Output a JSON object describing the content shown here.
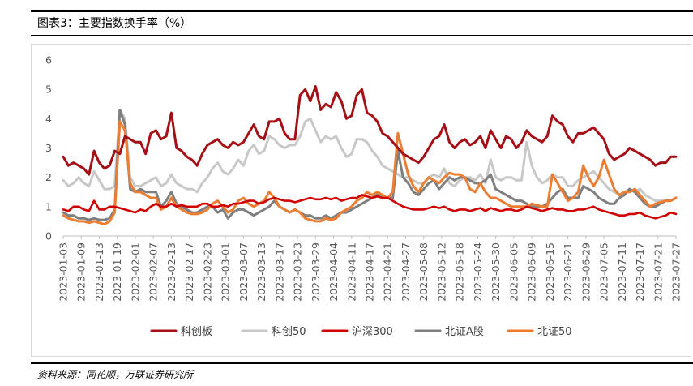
{
  "header": {
    "title": "图表3：主要指数换手率（%）"
  },
  "footer": {
    "source": "资料来源：同花顺，万联证券研究所"
  },
  "chart_data": {
    "type": "line",
    "ylim": [
      0,
      6
    ],
    "yticks": [
      0,
      1,
      2,
      3,
      4,
      5,
      6
    ],
    "xticks": [
      "2023-01-03",
      "2023-01-09",
      "2023-01-13",
      "2023-01-19",
      "2023-02-01",
      "2023-02-07",
      "2023-02-13",
      "2023-02-17",
      "2023-02-23",
      "2023-03-01",
      "2023-03-07",
      "2023-03-13",
      "2023-03-17",
      "2023-03-23",
      "2023-03-29",
      "2023-04-04",
      "2023-04-11",
      "2023-04-17",
      "2023-04-21",
      "2023-04-27",
      "2023-05-08",
      "2023-05-12",
      "2023-05-18",
      "2023-05-24",
      "2023-05-30",
      "2023-06-05",
      "2023-06-09",
      "2023-06-15",
      "2023-06-21",
      "2023-06-29",
      "2023-07-05",
      "2023-07-11",
      "2023-07-17",
      "2023-07-21",
      "2023-07-27"
    ],
    "points_per_tick": 4,
    "grid": false,
    "legend_position": "bottom",
    "series": [
      {
        "name": "科创板",
        "color": "#a50f15",
        "values": [
          2.7,
          2.4,
          2.5,
          2.4,
          2.3,
          2.1,
          2.9,
          2.5,
          2.3,
          2.4,
          2.9,
          2.8,
          3.4,
          3.3,
          3.2,
          3.2,
          2.8,
          3.5,
          3.6,
          3.3,
          3.4,
          4.2,
          3.0,
          2.9,
          2.7,
          2.6,
          2.4,
          2.8,
          3.1,
          3.2,
          3.3,
          3.1,
          3.0,
          3.2,
          3.1,
          3.2,
          3.5,
          3.8,
          3.4,
          3.3,
          3.9,
          3.9,
          4.0,
          3.5,
          3.3,
          3.3,
          4.8,
          5.0,
          4.6,
          5.1,
          4.3,
          4.5,
          4.4,
          4.9,
          4.6,
          4.0,
          4.1,
          4.8,
          5.0,
          4.2,
          4.1,
          3.9,
          3.5,
          3.4,
          3.2,
          3.0,
          2.8,
          2.7,
          2.6,
          2.5,
          2.7,
          3.0,
          3.3,
          3.4,
          3.8,
          3.2,
          3.0,
          3.2,
          3.3,
          3.1,
          3.2,
          3.4,
          3.0,
          3.6,
          3.3,
          3.0,
          3.4,
          3.3,
          3.0,
          3.2,
          3.6,
          3.4,
          3.3,
          3.2,
          3.4,
          4.1,
          3.9,
          3.8,
          3.4,
          3.2,
          3.5,
          3.5,
          3.6,
          3.7,
          3.5,
          3.3,
          2.8,
          2.6,
          2.7,
          2.8,
          3.0,
          2.9,
          2.8,
          2.7,
          2.6,
          2.4,
          2.5,
          2.5,
          2.7,
          2.7
        ]
      },
      {
        "name": "科创50",
        "color": "#c8c8c8",
        "values": [
          1.9,
          1.7,
          1.8,
          2.0,
          1.8,
          1.7,
          2.2,
          1.9,
          1.6,
          1.6,
          1.7,
          4.3,
          4.0,
          2.0,
          1.7,
          1.7,
          1.8,
          1.9,
          2.0,
          1.7,
          1.8,
          2.1,
          1.8,
          1.7,
          1.6,
          1.6,
          1.5,
          1.8,
          2.0,
          2.3,
          2.5,
          2.2,
          2.1,
          2.3,
          2.6,
          2.4,
          2.9,
          3.1,
          2.8,
          2.9,
          3.4,
          3.3,
          3.1,
          3.0,
          3.1,
          3.1,
          3.4,
          3.9,
          4.0,
          3.6,
          3.2,
          3.4,
          3.3,
          3.4,
          3.0,
          2.7,
          2.8,
          3.3,
          3.3,
          3.2,
          2.9,
          2.7,
          2.4,
          2.3,
          2.2,
          2.1,
          2.0,
          2.0,
          1.9,
          1.8,
          1.8,
          2.0,
          2.1,
          2.0,
          2.3,
          1.8,
          1.7,
          1.9,
          2.0,
          2.0,
          1.9,
          2.1,
          1.8,
          2.6,
          2.0,
          1.9,
          2.0,
          2.0,
          1.9,
          1.9,
          3.2,
          2.4,
          2.0,
          1.8,
          1.9,
          2.1,
          2.0,
          2.0,
          1.7,
          1.7,
          1.9,
          2.0,
          2.1,
          2.2,
          2.0,
          1.8,
          1.6,
          1.5,
          1.4,
          1.5,
          1.6,
          1.5,
          1.6,
          1.4,
          1.3,
          1.2,
          1.2,
          1.2,
          1.2,
          1.3
        ]
      },
      {
        "name": "沪深300",
        "color": "#d00000",
        "values": [
          0.9,
          0.85,
          1.0,
          1.0,
          0.9,
          0.85,
          1.2,
          0.9,
          0.9,
          1.0,
          1.0,
          0.95,
          0.9,
          0.85,
          0.8,
          0.9,
          0.85,
          1.0,
          1.1,
          1.0,
          1.0,
          1.1,
          1.0,
          1.05,
          1.0,
          1.0,
          1.0,
          1.1,
          1.1,
          1.0,
          1.0,
          1.05,
          1.0,
          1.1,
          1.1,
          1.15,
          1.2,
          1.2,
          1.1,
          1.15,
          1.25,
          1.3,
          1.25,
          1.2,
          1.2,
          1.15,
          1.2,
          1.25,
          1.3,
          1.25,
          1.25,
          1.3,
          1.25,
          1.3,
          1.2,
          1.25,
          1.3,
          1.3,
          1.4,
          1.35,
          1.3,
          1.35,
          1.3,
          1.3,
          1.2,
          1.1,
          1.0,
          0.95,
          0.9,
          0.9,
          0.9,
          0.95,
          1.0,
          0.95,
          1.0,
          0.9,
          0.85,
          0.9,
          0.9,
          0.85,
          0.9,
          0.95,
          0.85,
          0.95,
          0.9,
          0.85,
          0.9,
          0.9,
          0.85,
          0.9,
          1.0,
          0.95,
          0.9,
          0.85,
          0.9,
          0.95,
          0.9,
          0.9,
          0.85,
          0.85,
          0.9,
          0.9,
          0.95,
          1.0,
          0.9,
          0.85,
          0.8,
          0.75,
          0.7,
          0.7,
          0.75,
          0.75,
          0.8,
          0.7,
          0.65,
          0.6,
          0.65,
          0.7,
          0.8,
          0.75
        ]
      },
      {
        "name": "北证A股",
        "color": "#7f7f7f",
        "values": [
          0.8,
          0.7,
          0.7,
          0.6,
          0.6,
          0.55,
          0.6,
          0.55,
          0.55,
          0.6,
          0.9,
          4.3,
          3.8,
          1.6,
          1.5,
          1.6,
          1.5,
          1.5,
          1.5,
          1.0,
          1.2,
          1.5,
          1.1,
          1.0,
          0.9,
          0.8,
          0.8,
          0.9,
          1.0,
          1.0,
          0.8,
          0.9,
          0.6,
          0.8,
          0.9,
          0.9,
          0.8,
          0.7,
          0.8,
          0.9,
          1.0,
          1.2,
          1.0,
          0.9,
          0.8,
          0.9,
          0.8,
          0.7,
          0.7,
          0.6,
          0.6,
          0.7,
          0.6,
          0.7,
          0.8,
          0.8,
          0.9,
          1.0,
          1.1,
          1.2,
          1.3,
          1.4,
          1.3,
          1.3,
          1.3,
          2.9,
          2.0,
          1.8,
          1.5,
          1.4,
          1.6,
          1.8,
          1.9,
          1.6,
          1.8,
          2.0,
          1.9,
          2.0,
          2.0,
          1.9,
          1.8,
          1.8,
          1.9,
          2.1,
          1.6,
          1.5,
          1.4,
          1.3,
          1.2,
          1.2,
          1.1,
          1.0,
          1.0,
          1.0,
          1.1,
          1.3,
          1.5,
          1.6,
          1.3,
          1.3,
          1.3,
          1.7,
          1.6,
          1.5,
          1.3,
          1.2,
          1.1,
          1.1,
          1.3,
          1.4,
          1.6,
          1.5,
          1.3,
          1.1,
          1.0,
          1.0,
          1.1,
          1.2,
          1.2,
          1.3
        ]
      },
      {
        "name": "北证50",
        "color": "#ed7d31",
        "values": [
          0.7,
          0.6,
          0.55,
          0.5,
          0.5,
          0.45,
          0.5,
          0.45,
          0.4,
          0.5,
          0.8,
          3.9,
          3.6,
          1.8,
          1.5,
          1.5,
          1.4,
          1.3,
          1.3,
          0.9,
          1.0,
          1.3,
          1.0,
          0.9,
          0.8,
          0.75,
          0.75,
          0.8,
          0.9,
          1.1,
          1.2,
          1.0,
          0.8,
          0.9,
          1.2,
          1.3,
          1.1,
          1.0,
          1.1,
          1.2,
          1.5,
          1.3,
          1.0,
          0.9,
          0.8,
          0.9,
          0.8,
          0.6,
          0.55,
          0.5,
          0.5,
          0.6,
          0.55,
          0.6,
          0.8,
          0.9,
          1.0,
          1.2,
          1.3,
          1.5,
          1.4,
          1.5,
          1.4,
          1.3,
          1.5,
          3.5,
          2.8,
          2.1,
          1.7,
          1.5,
          1.8,
          2.0,
          1.9,
          1.8,
          2.0,
          2.15,
          2.1,
          2.1,
          2.0,
          1.6,
          1.5,
          1.8,
          1.5,
          1.3,
          1.3,
          1.2,
          1.1,
          1.0,
          1.0,
          1.0,
          1.0,
          1.1,
          1.05,
          1.0,
          1.0,
          2.1,
          1.8,
          1.5,
          1.2,
          1.3,
          1.5,
          2.4,
          2.0,
          1.7,
          2.0,
          2.6,
          2.1,
          1.6,
          1.4,
          1.5,
          1.5,
          1.6,
          1.4,
          1.2,
          1.0,
          1.1,
          1.15,
          1.2,
          1.2,
          1.3
        ]
      }
    ]
  }
}
